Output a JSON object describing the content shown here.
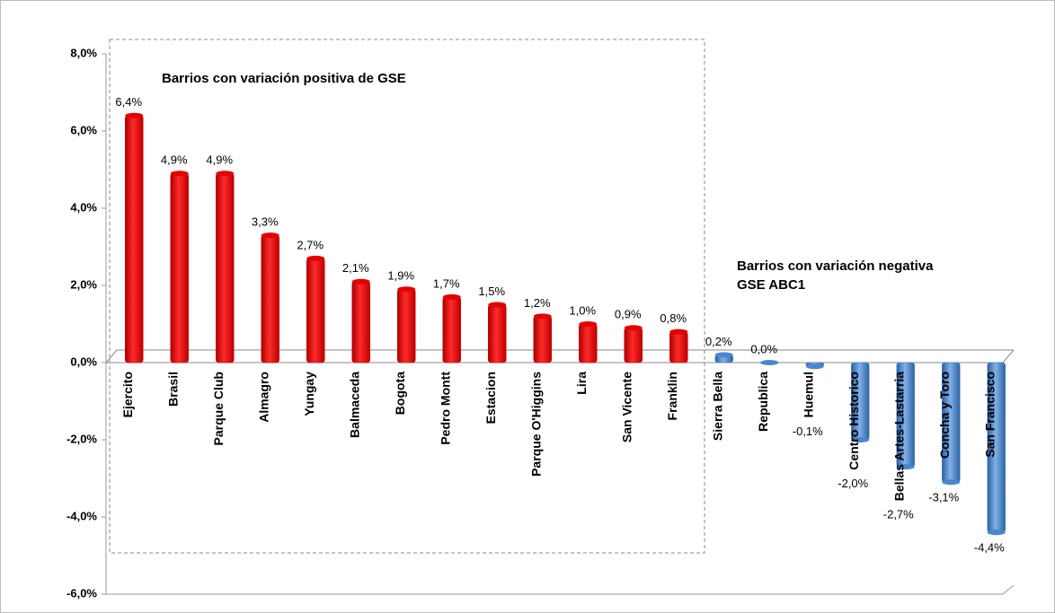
{
  "chart_data": {
    "type": "bar",
    "categories": [
      "Ejercito",
      "Brasil",
      "Parque Club",
      "Almagro",
      "Yungay",
      "Balmaceda",
      "Bogota",
      "Pedro Montt",
      "Estacion",
      "Parque O'Higgins",
      "Lira",
      "San Vicente",
      "Franklin",
      "Sierra Bella",
      "Republica",
      "Huemul",
      "Centro Historico",
      "Bellas Artes-Lastarria",
      "Concha y Toro",
      "San Francisco"
    ],
    "values": [
      6.4,
      4.9,
      4.9,
      3.3,
      2.7,
      2.1,
      1.9,
      1.7,
      1.5,
      1.2,
      1.0,
      0.9,
      0.8,
      0.2,
      0.0,
      -0.1,
      -2.0,
      -2.7,
      -3.1,
      -4.4
    ],
    "value_labels": [
      "6,4%",
      "4,9%",
      "4,9%",
      "3,3%",
      "2,7%",
      "2,1%",
      "1,9%",
      "1,7%",
      "1,5%",
      "1,2%",
      "1,0%",
      "0,9%",
      "0,8%",
      "0,2%",
      "0,0%",
      "-0,1%",
      "-2,0%",
      "-2,7%",
      "-3,1%",
      "-4,4%"
    ],
    "colors": [
      "#e60000",
      "#e60000",
      "#e60000",
      "#e60000",
      "#e60000",
      "#e60000",
      "#e60000",
      "#e60000",
      "#e60000",
      "#e60000",
      "#e60000",
      "#e60000",
      "#e60000",
      "#4a86d0",
      "#4a86d0",
      "#4a86d0",
      "#4a86d0",
      "#4a86d0",
      "#4a86d0",
      "#4a86d0"
    ],
    "ylim": [
      -6,
      8
    ],
    "yticks": [
      {
        "value": -6,
        "label": "-6,0%"
      },
      {
        "value": -4,
        "label": "-4,0%"
      },
      {
        "value": -2,
        "label": "-2,0%"
      },
      {
        "value": 0,
        "label": "0,0%"
      },
      {
        "value": 2,
        "label": "2,0%"
      },
      {
        "value": 4,
        "label": "4,0%"
      },
      {
        "value": 6,
        "label": "6,0%"
      },
      {
        "value": 8,
        "label": "8,0%"
      }
    ],
    "annotations": [
      "Barrios con variación positiva de GSE",
      "Barrios con variación negativa",
      "GSE ABC1"
    ]
  }
}
